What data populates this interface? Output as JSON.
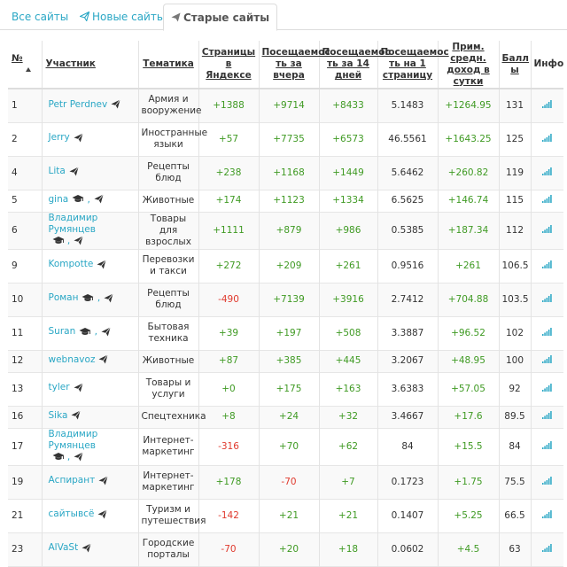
{
  "tabs": [
    {
      "label": "Все сайты",
      "icon": ""
    },
    {
      "label": "Новые сайты",
      "icon": "paper-plane-icon"
    },
    {
      "label": "Старые сайты",
      "icon": "paper-plane-icon"
    }
  ],
  "headers": {
    "num": "№",
    "member": "Участник",
    "topic": "Тематика",
    "yandex": "Страницы в Яндексе",
    "yesterday": "Посещаемос ть за вчера",
    "days14": "Посещаемос ть за 14 дней",
    "perpage": "Посещаемос ть на 1 страницу",
    "income": "Прим. средн. доход в сутки",
    "score": "Балл ы",
    "info": "Инфо"
  },
  "rows": [
    {
      "num": "1",
      "name": "Petr Perdnev",
      "cap": false,
      "topic": "Армия и вооружение",
      "yandex": "+1388",
      "yesterday": "+9714",
      "days14": "+8433",
      "perpage": "5.1483",
      "income": "+1264.95",
      "score": "131"
    },
    {
      "num": "2",
      "name": "Jerry",
      "cap": false,
      "topic": "Иностранные языки",
      "yandex": "+57",
      "yesterday": "+7735",
      "days14": "+6573",
      "perpage": "46.5561",
      "income": "+1643.25",
      "score": "125"
    },
    {
      "num": "4",
      "name": "Lita",
      "cap": false,
      "topic": "Рецепты блюд",
      "yandex": "+238",
      "yesterday": "+1168",
      "days14": "+1449",
      "perpage": "5.6462",
      "income": "+260.82",
      "score": "119"
    },
    {
      "num": "5",
      "name": "gina",
      "cap": true,
      "topic": "Животные",
      "yandex": "+174",
      "yesterday": "+1123",
      "days14": "+1334",
      "perpage": "6.5625",
      "income": "+146.74",
      "score": "115"
    },
    {
      "num": "6",
      "name": "Владимир Румянцев",
      "cap": true,
      "topic": "Товары для взрослых",
      "yandex": "+1111",
      "yesterday": "+879",
      "days14": "+986",
      "perpage": "0.5385",
      "income": "+187.34",
      "score": "112"
    },
    {
      "num": "9",
      "name": "Kompotte",
      "cap": false,
      "topic": "Перевозки и такси",
      "yandex": "+272",
      "yesterday": "+209",
      "days14": "+261",
      "perpage": "0.9516",
      "income": "+261",
      "score": "106.5"
    },
    {
      "num": "10",
      "name": "Роман",
      "cap": true,
      "topic": "Рецепты блюд",
      "yandex": "-490",
      "yesterday": "+7139",
      "days14": "+3916",
      "perpage": "2.7412",
      "income": "+704.88",
      "score": "103.5"
    },
    {
      "num": "11",
      "name": "Suran",
      "cap": true,
      "topic": "Бытовая техника",
      "yandex": "+39",
      "yesterday": "+197",
      "days14": "+508",
      "perpage": "3.3887",
      "income": "+96.52",
      "score": "102"
    },
    {
      "num": "12",
      "name": "webnavoz",
      "cap": false,
      "topic": "Животные",
      "yandex": "+87",
      "yesterday": "+385",
      "days14": "+445",
      "perpage": "3.2067",
      "income": "+48.95",
      "score": "100"
    },
    {
      "num": "13",
      "name": "tyler",
      "cap": false,
      "topic": "Товары и услуги",
      "yandex": "+0",
      "yesterday": "+175",
      "days14": "+163",
      "perpage": "3.6383",
      "income": "+57.05",
      "score": "92"
    },
    {
      "num": "16",
      "name": "Sika",
      "cap": false,
      "topic": "Спецтехника",
      "yandex": "+8",
      "yesterday": "+24",
      "days14": "+32",
      "perpage": "3.4667",
      "income": "+17.6",
      "score": "89.5"
    },
    {
      "num": "17",
      "name": "Владимир Румянцев",
      "cap": true,
      "topic": "Интернет-маркетинг",
      "yandex": "-316",
      "yesterday": "+70",
      "days14": "+62",
      "perpage": "84",
      "income": "+15.5",
      "score": "84"
    },
    {
      "num": "19",
      "name": "Аспирант",
      "cap": false,
      "topic": "Интернет-маркетинг",
      "yandex": "+178",
      "yesterday": "-70",
      "days14": "+7",
      "perpage": "0.1723",
      "income": "+1.75",
      "score": "75.5"
    },
    {
      "num": "21",
      "name": "сайтывсё",
      "cap": false,
      "topic": "Туризм и путешествия",
      "yandex": "-142",
      "yesterday": "+21",
      "days14": "+21",
      "perpage": "0.1407",
      "income": "+5.25",
      "score": "66.5"
    },
    {
      "num": "23",
      "name": "AlVaSt",
      "cap": false,
      "topic": "Городские порталы",
      "yandex": "-70",
      "yesterday": "+20",
      "days14": "+18",
      "perpage": "0.0602",
      "income": "+4.5",
      "score": "63"
    }
  ],
  "icons": {
    "plane": "paper-plane-icon",
    "cap": "graduation-cap-icon",
    "info": "signal-bars-icon"
  },
  "colors": {
    "link": "#2aa7c5",
    "positive": "#3f9a23",
    "negative": "#e03a2e",
    "info": "#2aa7c5"
  }
}
